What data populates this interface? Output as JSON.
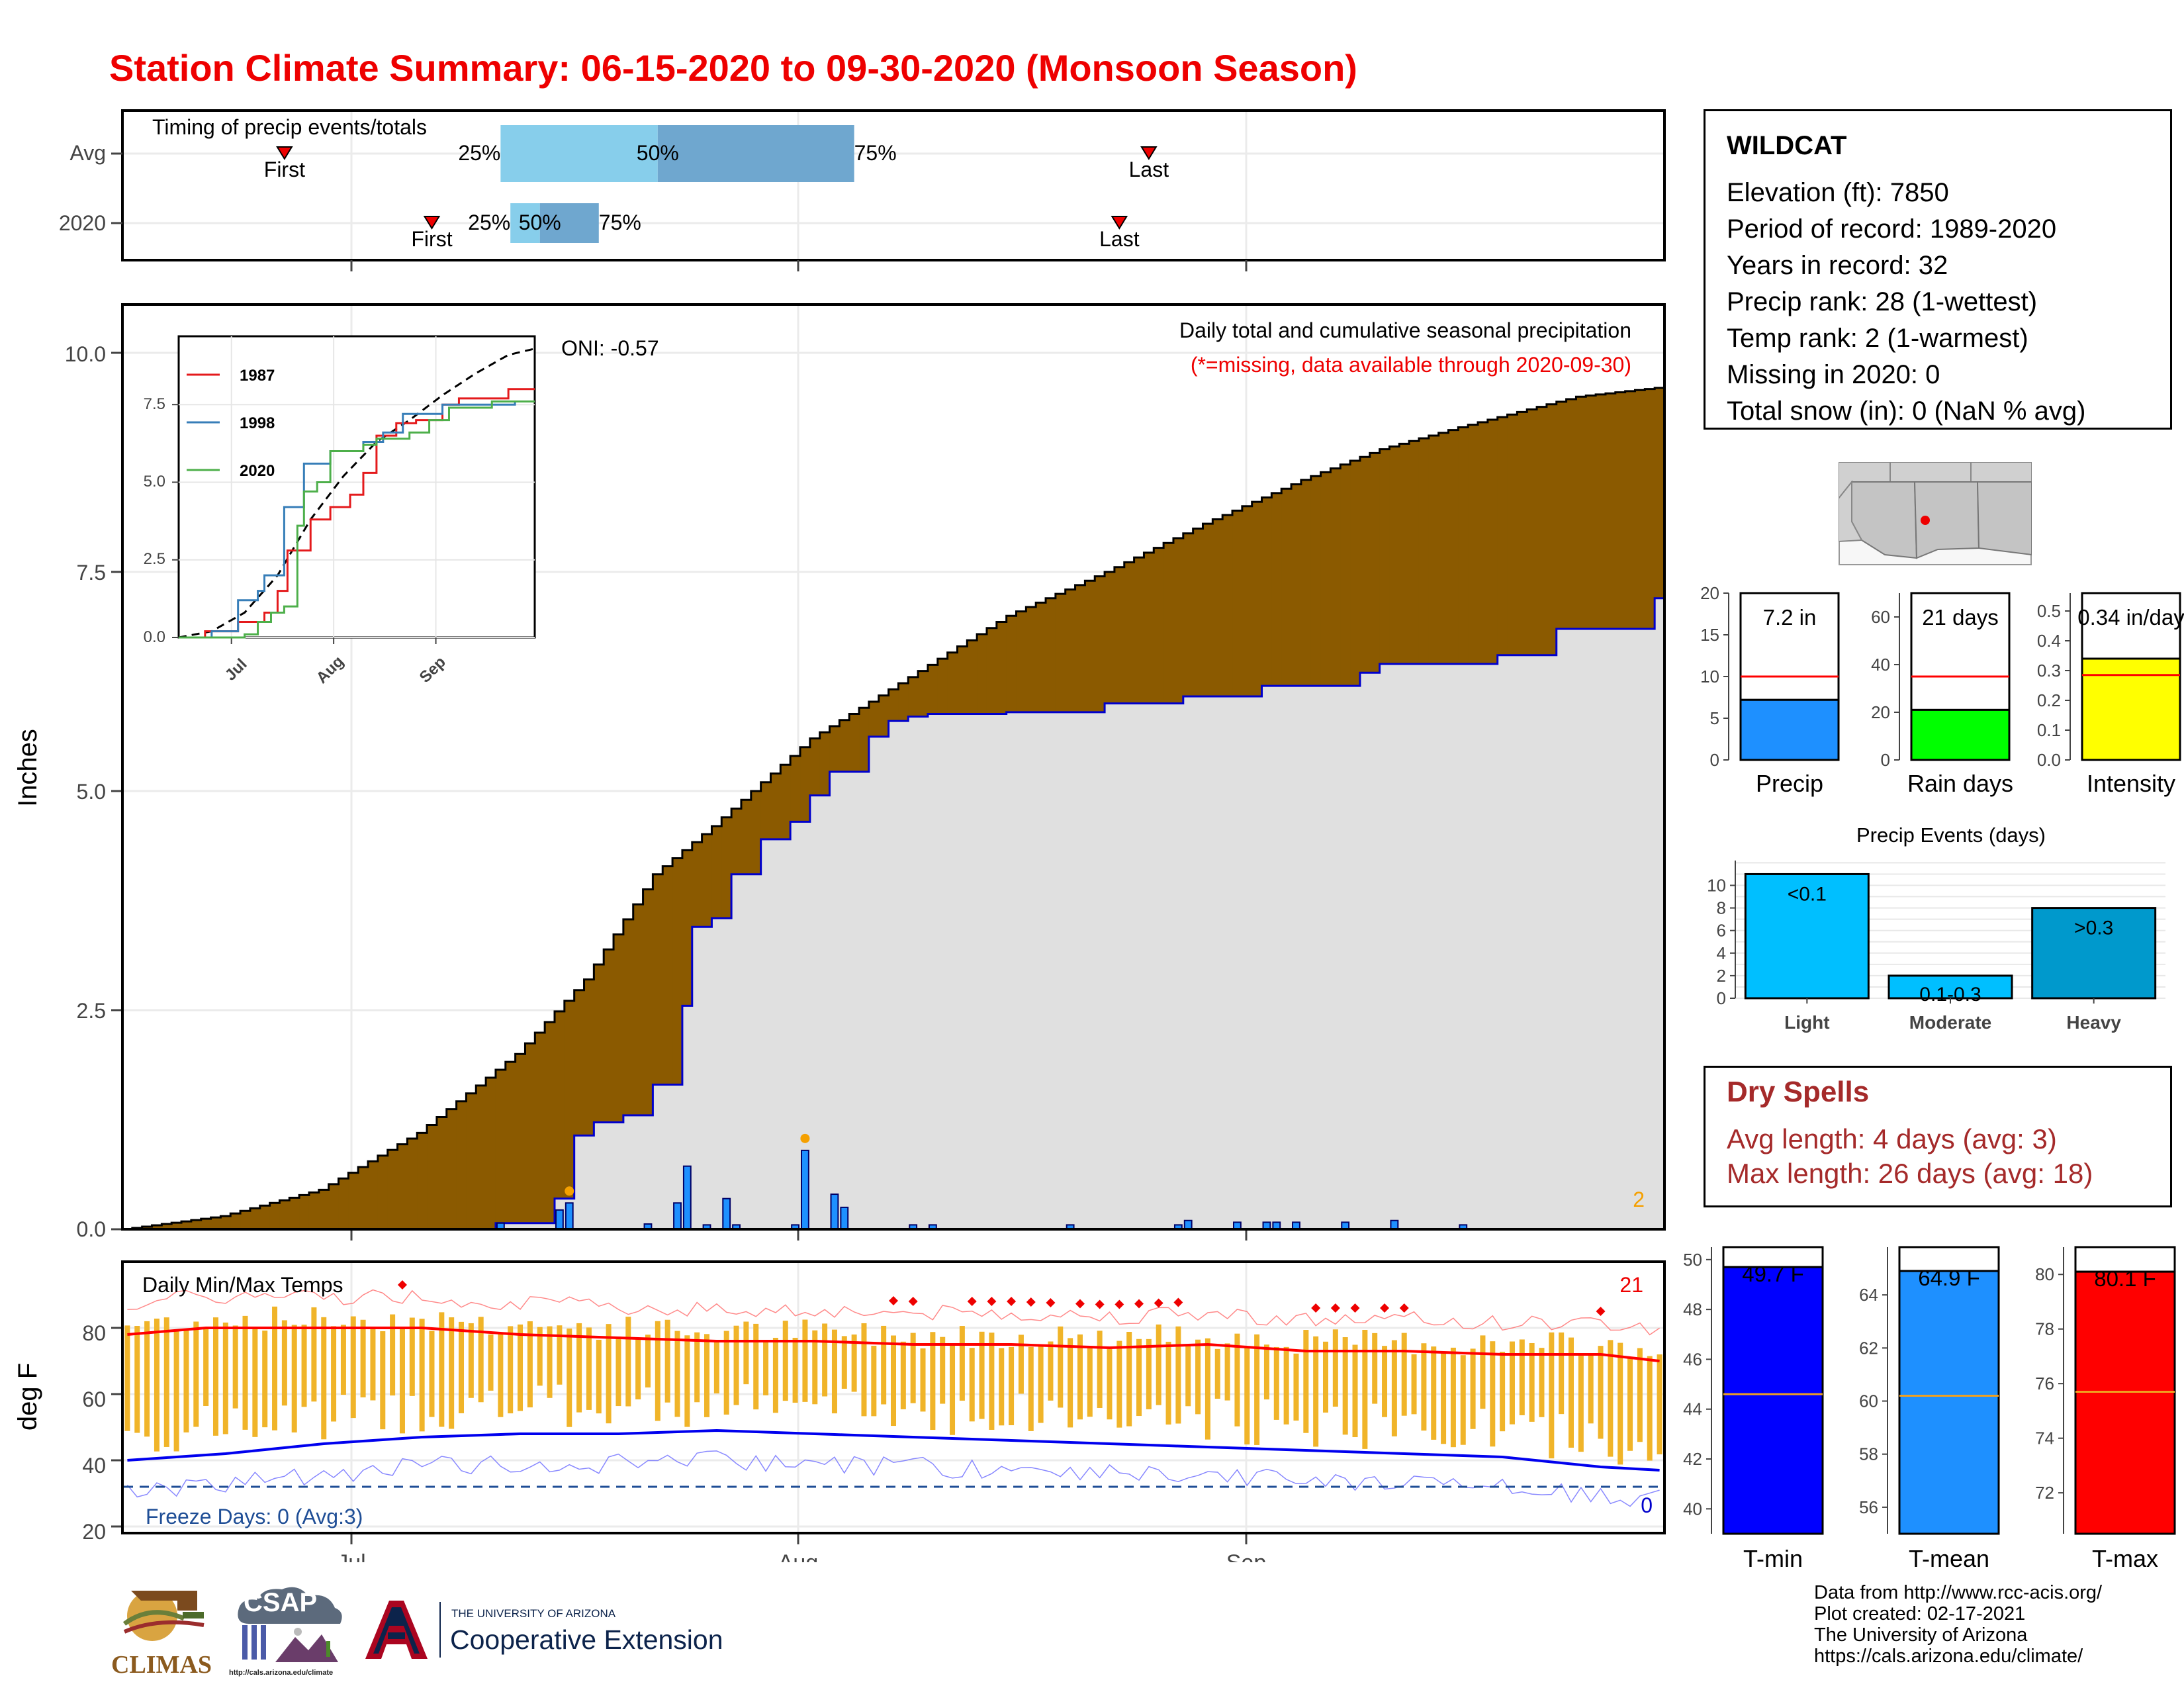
{
  "title": "Station Climate Summary: 06-15-2020 to 09-30-2020 (Monsoon Season)",
  "timing_panel": {
    "label": "Timing of precip events/totals",
    "rows": [
      {
        "label": "Avg",
        "first_label": "First",
        "last_label": "Last",
        "first_day": 16,
        "last_day": 104,
        "q25": "25%",
        "q50": "50%",
        "q75": "75%",
        "q25_day": 38,
        "q50_day": 54,
        "q75_day": 74
      },
      {
        "label": "2020",
        "first_label": "First",
        "last_label": "Last",
        "first_day": 31,
        "last_day": 101,
        "q25": "25%",
        "q50": "50%",
        "q75": "75%",
        "q25_day": 39,
        "q50_day": 42,
        "q75_day": 48
      }
    ]
  },
  "main_panel": {
    "ylabel": "Inches",
    "yticks": [
      "0.0",
      "2.5",
      "5.0",
      "7.5",
      "10.0"
    ],
    "header": "Daily total and cumulative seasonal precipitation",
    "missing_note": "(*=missing, data available through 2020-09-30)",
    "oni": "ONI: -0.57",
    "count_label": "2"
  },
  "inset": {
    "legend": [
      {
        "name": "1987",
        "color": "#e41a1c"
      },
      {
        "name": "1998",
        "color": "#377eb8"
      },
      {
        "name": "2020",
        "color": "#4daf4a"
      }
    ],
    "yticks": [
      "0.0",
      "2.5",
      "5.0",
      "7.5"
    ],
    "xticks": [
      "Jul",
      "Aug",
      "Sep"
    ]
  },
  "temp_panel": {
    "ylabel": "deg F",
    "title": "Daily Min/Max Temps",
    "yticks": [
      "20",
      "40",
      "60",
      "80"
    ],
    "freeze_label": "Freeze Days: 0 (Avg:3)",
    "max_count": "21",
    "min_count": "0",
    "xticks": [
      "Jul",
      "Aug",
      "Sep"
    ]
  },
  "station": {
    "name": "WILDCAT",
    "lines": [
      "Elevation (ft): 7850",
      "Period of record: 1989-2020",
      "Years in record: 32",
      "Precip rank: 28 (1-wettest)",
      "Temp rank: 2 (1-warmest)",
      "Missing in 2020: 0",
      "Total snow (in): 0 (NaN % avg)"
    ]
  },
  "bar_panels": [
    {
      "label": "Precip",
      "value_label": "7.2 in",
      "value": 7.2,
      "avg": 10.0,
      "ymax": 20,
      "yticks": [
        "0",
        "5",
        "10",
        "15",
        "20"
      ],
      "color": "#1e90ff"
    },
    {
      "label": "Rain days",
      "value_label": "21 days",
      "value": 21,
      "avg": 35,
      "ymax": 70,
      "yticks": [
        "0",
        "20",
        "40",
        "60"
      ],
      "color": "#00ff00"
    },
    {
      "label": "Intensity",
      "value_label": "0.34 in/day",
      "value": 0.34,
      "avg": 0.285,
      "ymax": 0.56,
      "yticks": [
        "0.0",
        "0.1",
        "0.2",
        "0.3",
        "0.4",
        "0.5"
      ],
      "color": "#ffff00"
    }
  ],
  "precip_events": {
    "title": "Precip Events (days)",
    "categories": [
      "Light",
      "Moderate",
      "Heavy"
    ],
    "bar_labels": [
      "<0.1",
      "0.1-0.3",
      ">0.3"
    ],
    "values": [
      11,
      2,
      8
    ],
    "yticks": [
      "0",
      "2",
      "4",
      "6",
      "8",
      "10"
    ],
    "colors": [
      "#00bfff",
      "#00bfff",
      "#0099cc"
    ]
  },
  "dry_spells": {
    "title": "Dry Spells",
    "lines": [
      "Avg length: 4 days (avg: 3)",
      "Max length: 26 days (avg: 18)"
    ]
  },
  "temp_bars": [
    {
      "label": "T-min",
      "value_label": "49.7 F",
      "value": 49.7,
      "avg": 44.6,
      "ymin": 39,
      "ymax": 50.5,
      "yticks": [
        "40",
        "42",
        "44",
        "46",
        "48",
        "50"
      ],
      "color": "#0000ff"
    },
    {
      "label": "T-mean",
      "value_label": "64.9 F",
      "value": 64.9,
      "avg": 60.2,
      "ymin": 55,
      "ymax": 65.8,
      "yticks": [
        "56",
        "58",
        "60",
        "62",
        "64"
      ],
      "color": "#1e90ff"
    },
    {
      "label": "T-max",
      "value_label": "80.1 F",
      "value": 80.1,
      "avg": 75.7,
      "ymin": 70.5,
      "ymax": 81,
      "yticks": [
        "72",
        "74",
        "76",
        "78",
        "80"
      ],
      "color": "#ff0000"
    }
  ],
  "credits": [
    "Data from http://www.rcc-acis.org/",
    "Plot created: 02-17-2021",
    "The University of Arizona",
    "https://cals.arizona.edu/climate/"
  ],
  "logos": {
    "climas": "CLIMAS",
    "csap": "CSAP",
    "csap_url": "http://cals.arizona.edu/climate",
    "ua_small": "THE UNIVERSITY OF ARIZONA",
    "ua_big": "Cooperative Extension"
  },
  "chart_data": [
    {
      "type": "area",
      "title": "Daily total and cumulative seasonal precipitation",
      "ylabel": "Inches",
      "ylim": [
        0,
        10.5
      ],
      "x_range": [
        "2020-06-15",
        "2020-09-30"
      ],
      "series": [
        {
          "name": "cumulative average",
          "values": [
            [
              0,
              0
            ],
            [
              10,
              0.15
            ],
            [
              20,
              0.45
            ],
            [
              30,
              1.1
            ],
            [
              40,
              2.0
            ],
            [
              47,
              2.85
            ],
            [
              54,
              4.05
            ],
            [
              60,
              4.6
            ],
            [
              70,
              5.6
            ],
            [
              80,
              6.3
            ],
            [
              90,
              7.0
            ],
            [
              100,
              7.5
            ],
            [
              110,
              8.05
            ],
            [
              120,
              8.55
            ],
            [
              128,
              8.9
            ],
            [
              136,
              9.15
            ],
            [
              148,
              9.5
            ],
            [
              156,
              9.6
            ]
          ]
        },
        {
          "name": "2020 cumulative",
          "values": [
            [
              0,
              0
            ],
            [
              38,
              0.07
            ],
            [
              44,
              0.35
            ],
            [
              46,
              1.07
            ],
            [
              48,
              1.22
            ],
            [
              50,
              1.22
            ],
            [
              51,
              1.3
            ],
            [
              54,
              1.65
            ],
            [
              57,
              2.55
            ],
            [
              58,
              3.45
            ],
            [
              60,
              3.55
            ],
            [
              62,
              4.05
            ],
            [
              65,
              4.45
            ],
            [
              68,
              4.65
            ],
            [
              70,
              4.95
            ],
            [
              72,
              5.22
            ],
            [
              76,
              5.62
            ],
            [
              78,
              5.8
            ],
            [
              80,
              5.85
            ],
            [
              82,
              5.88
            ],
            [
              90,
              5.9
            ],
            [
              100,
              6.0
            ],
            [
              108,
              6.08
            ],
            [
              116,
              6.2
            ],
            [
              126,
              6.35
            ],
            [
              128,
              6.45
            ],
            [
              140,
              6.55
            ],
            [
              146,
              6.85
            ],
            [
              156,
              7.2
            ]
          ]
        }
      ],
      "daily_bars": [
        {
          "x": 38,
          "value": 0.07
        },
        {
          "x": 44,
          "value": 0.22
        },
        {
          "x": 45,
          "value": 0.3
        },
        {
          "x": 53,
          "value": 0.06
        },
        {
          "x": 56,
          "value": 0.3
        },
        {
          "x": 57,
          "value": 0.72
        },
        {
          "x": 59,
          "value": 0.05
        },
        {
          "x": 61,
          "value": 0.35
        },
        {
          "x": 62,
          "value": 0.05
        },
        {
          "x": 68,
          "value": 0.05
        },
        {
          "x": 69,
          "value": 0.9
        },
        {
          "x": 72,
          "value": 0.4
        },
        {
          "x": 73,
          "value": 0.25
        },
        {
          "x": 80,
          "value": 0.05
        },
        {
          "x": 82,
          "value": 0.05
        },
        {
          "x": 96,
          "value": 0.05
        },
        {
          "x": 107,
          "value": 0.05
        },
        {
          "x": 108,
          "value": 0.1
        },
        {
          "x": 113,
          "value": 0.08
        },
        {
          "x": 116,
          "value": 0.08
        },
        {
          "x": 117,
          "value": 0.08
        },
        {
          "x": 119,
          "value": 0.08
        },
        {
          "x": 124,
          "value": 0.08
        },
        {
          "x": 129,
          "value": 0.1
        },
        {
          "x": 136,
          "value": 0.05
        }
      ]
    },
    {
      "type": "line",
      "title": "",
      "ylim": [
        0,
        9.3
      ],
      "x_range": [
        "2020-06-15",
        "2020-09-30"
      ],
      "series": [
        {
          "name": "avg",
          "style": "dashed",
          "values": [
            [
              0,
              0.0
            ],
            [
              10,
              0.2
            ],
            [
              20,
              0.8
            ],
            [
              30,
              2.0
            ],
            [
              40,
              3.8
            ],
            [
              50,
              5.2
            ],
            [
              60,
              6.3
            ],
            [
              70,
              7.0
            ],
            [
              80,
              7.8
            ],
            [
              90,
              8.5
            ],
            [
              100,
              9.1
            ],
            [
              108,
              9.3
            ]
          ]
        },
        {
          "name": "1987",
          "values": [
            [
              0,
              0
            ],
            [
              8,
              0.2
            ],
            [
              18,
              0.5
            ],
            [
              26,
              0.8
            ],
            [
              30,
              1.5
            ],
            [
              33,
              2.8
            ],
            [
              40,
              3.8
            ],
            [
              46,
              4.2
            ],
            [
              52,
              4.6
            ],
            [
              56,
              5.3
            ],
            [
              60,
              6.5
            ],
            [
              66,
              6.9
            ],
            [
              72,
              7.0
            ],
            [
              80,
              7.5
            ],
            [
              85,
              7.7
            ],
            [
              95,
              7.7
            ],
            [
              100,
              8.0
            ],
            [
              108,
              8.0
            ]
          ]
        },
        {
          "name": "1998",
          "values": [
            [
              0,
              0
            ],
            [
              10,
              0.2
            ],
            [
              18,
              1.2
            ],
            [
              24,
              1.5
            ],
            [
              26,
              2.0
            ],
            [
              32,
              4.2
            ],
            [
              38,
              5.6
            ],
            [
              46,
              6.0
            ],
            [
              56,
              6.3
            ],
            [
              62,
              6.6
            ],
            [
              68,
              7.2
            ],
            [
              80,
              7.5
            ],
            [
              95,
              7.5
            ],
            [
              102,
              7.6
            ],
            [
              108,
              7.6
            ]
          ]
        },
        {
          "name": "2020",
          "values": [
            [
              0,
              0
            ],
            [
              20,
              0.1
            ],
            [
              24,
              0.5
            ],
            [
              28,
              0.8
            ],
            [
              32,
              1.0
            ],
            [
              36,
              3.6
            ],
            [
              38,
              4.7
            ],
            [
              42,
              5.0
            ],
            [
              46,
              6.0
            ],
            [
              56,
              6.2
            ],
            [
              60,
              6.4
            ],
            [
              70,
              6.6
            ],
            [
              76,
              7.0
            ],
            [
              82,
              7.4
            ],
            [
              95,
              7.6
            ],
            [
              108,
              7.6
            ]
          ]
        }
      ],
      "xticks": [
        "Jul",
        "Aug",
        "Sep"
      ]
    },
    {
      "type": "bar",
      "title": "Daily Min/Max Temps",
      "ylabel": "deg F",
      "ylim": [
        18,
        98
      ],
      "x_range": [
        "2020-06-15",
        "2020-09-30"
      ],
      "series": [
        {
          "name": "avg max",
          "values": [
            [
              0,
              78
            ],
            [
              8,
              80
            ],
            [
              20,
              80
            ],
            [
              30,
              80
            ],
            [
              40,
              78
            ],
            [
              50,
              77
            ],
            [
              60,
              76
            ],
            [
              70,
              76
            ],
            [
              80,
              75
            ],
            [
              90,
              75
            ],
            [
              100,
              74
            ],
            [
              110,
              75
            ],
            [
              120,
              73
            ],
            [
              130,
              73
            ],
            [
              140,
              72
            ],
            [
              150,
              72
            ],
            [
              156,
              70
            ]
          ]
        },
        {
          "name": "avg min",
          "values": [
            [
              0,
              40
            ],
            [
              10,
              42
            ],
            [
              20,
              45
            ],
            [
              30,
              47
            ],
            [
              40,
              48
            ],
            [
              50,
              48
            ],
            [
              60,
              49
            ],
            [
              70,
              48
            ],
            [
              80,
              47
            ],
            [
              90,
              46
            ],
            [
              100,
              45
            ],
            [
              110,
              44
            ],
            [
              120,
              43
            ],
            [
              130,
              42
            ],
            [
              140,
              41
            ],
            [
              150,
              38
            ],
            [
              156,
              37
            ]
          ]
        }
      ],
      "freeze_line": 32
    },
    {
      "type": "bar",
      "title": "Precip Events (days)",
      "categories": [
        "Light",
        "Moderate",
        "Heavy"
      ],
      "values": [
        11,
        2,
        8
      ]
    }
  ]
}
